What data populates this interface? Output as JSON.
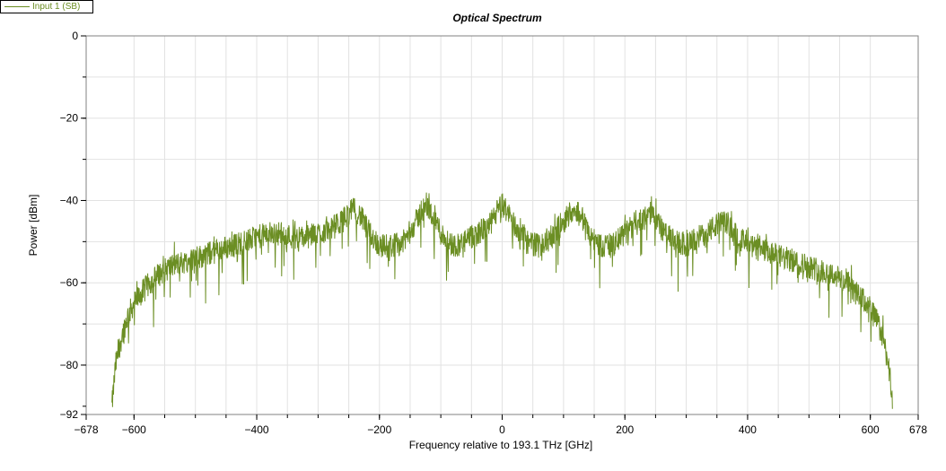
{
  "chart_data": {
    "type": "line",
    "title": "Optical Spectrum",
    "xlabel": "Frequency relative to 193.1 THz [GHz]",
    "ylabel": "Power [dBm]",
    "xlim": [
      -678,
      678
    ],
    "ylim": [
      -92,
      0
    ],
    "x_ticks": [
      -678,
      -600,
      -400,
      -200,
      0,
      200,
      400,
      600,
      678
    ],
    "x_tick_labels": [
      "−678",
      "−600",
      "−400",
      "−200",
      "0",
      "200",
      "400",
      "600",
      "678"
    ],
    "y_ticks": [
      0,
      -20,
      -40,
      -60,
      -80,
      -92
    ],
    "y_tick_labels": [
      "0",
      "−20",
      "−40",
      "−60",
      "−80",
      "−92"
    ],
    "grid": true,
    "legend_position": "top-left",
    "series": [
      {
        "name": "Input 1  (SB)",
        "color": "#6b8e23",
        "x": [
          -636,
          -630,
          -620,
          -610,
          -600,
          -580,
          -560,
          -540,
          -520,
          -500,
          -480,
          -460,
          -440,
          -420,
          -400,
          -380,
          -360,
          -340,
          -320,
          -300,
          -280,
          -260,
          -250,
          -240,
          -230,
          -220,
          -200,
          -180,
          -160,
          -140,
          -130,
          -120,
          -110,
          -100,
          -80,
          -60,
          -40,
          -20,
          -10,
          0,
          10,
          20,
          40,
          60,
          80,
          100,
          110,
          120,
          130,
          140,
          160,
          180,
          200,
          220,
          240,
          250,
          260,
          280,
          300,
          320,
          340,
          360,
          370,
          380,
          400,
          420,
          440,
          460,
          480,
          500,
          520,
          540,
          560,
          580,
          600,
          610,
          620,
          630,
          636
        ],
        "y": [
          -90,
          -80,
          -73,
          -68,
          -65,
          -61,
          -58,
          -56,
          -55,
          -54,
          -53,
          -52,
          -51,
          -50,
          -49,
          -48,
          -48,
          -49,
          -49,
          -48,
          -47,
          -45,
          -43,
          -42,
          -44,
          -47,
          -51,
          -51,
          -50,
          -45,
          -42,
          -42,
          -44,
          -48,
          -51,
          -50,
          -48,
          -46,
          -43,
          -41,
          -43,
          -46,
          -50,
          -51,
          -49,
          -45,
          -43,
          -42,
          -44,
          -48,
          -51,
          -51,
          -48,
          -45,
          -43,
          -44,
          -47,
          -50,
          -51,
          -49,
          -47,
          -45,
          -46,
          -48,
          -51,
          -52,
          -53,
          -54,
          -55,
          -56,
          -57,
          -58,
          -60,
          -63,
          -66,
          -69,
          -73,
          -80,
          -90
        ]
      }
    ]
  }
}
